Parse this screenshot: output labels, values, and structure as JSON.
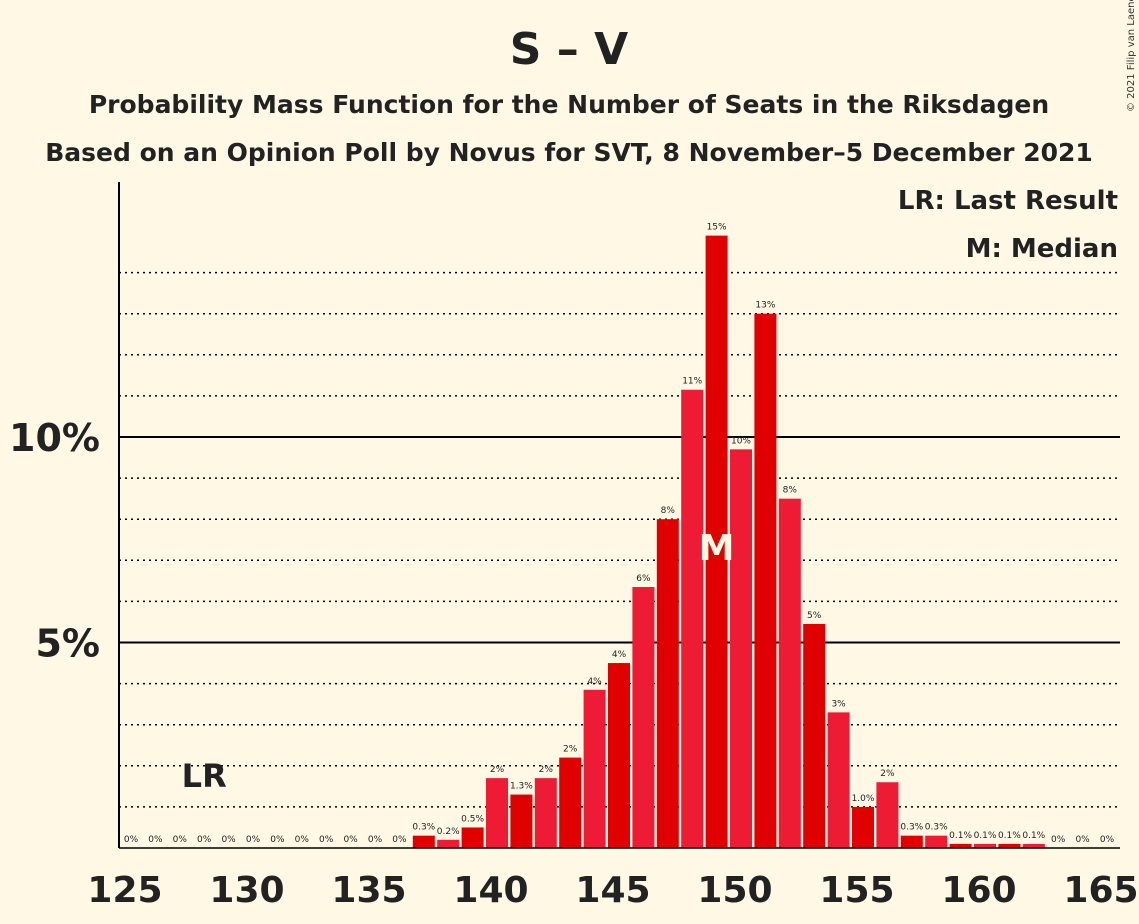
{
  "title": "S – V",
  "subtitle1": "Probability Mass Function for the Number of Seats in the Riksdagen",
  "subtitle2": "Based on an Opinion Poll by Novus for SVT, 8 November–5 December 2021",
  "copyright": "© 2021 Filip van Laenen",
  "legend": {
    "lr": "LR: Last Result",
    "m": "M: Median"
  },
  "markers": {
    "lr_label": "LR",
    "lr_seat": 128,
    "median_label": "M",
    "median_seat": 149
  },
  "colors": {
    "bg": "#FFF8E5",
    "bar_a": "#E10000",
    "bar_b": "#ED1B34",
    "axis": "#000000"
  },
  "chart_data": {
    "type": "bar",
    "xlabel": "",
    "ylabel": "",
    "x": [
      125,
      126,
      127,
      128,
      129,
      130,
      131,
      132,
      133,
      134,
      135,
      136,
      137,
      138,
      139,
      140,
      141,
      142,
      143,
      144,
      145,
      146,
      147,
      148,
      149,
      150,
      151,
      152,
      153,
      154,
      155,
      156,
      157,
      158,
      159,
      160,
      161,
      162,
      163,
      164,
      165
    ],
    "values": [
      0,
      0,
      0,
      0,
      0,
      0,
      0,
      0,
      0,
      0,
      0,
      0,
      0.3,
      0.2,
      0.5,
      1.7,
      1.3,
      1.7,
      2.2,
      3.85,
      4.5,
      6.35,
      8.0,
      11.15,
      14.9,
      9.7,
      13.0,
      8.5,
      5.45,
      3.3,
      1.0,
      1.6,
      0.3,
      0.3,
      0.1,
      0.1,
      0.1,
      0.1,
      0,
      0,
      0
    ],
    "labels": [
      "0%",
      "0%",
      "0%",
      "0%",
      "0%",
      "0%",
      "0%",
      "0%",
      "0%",
      "0%",
      "0%",
      "0%",
      "0.3%",
      "0.2%",
      "0.5%",
      "2%",
      "1.3%",
      "2%",
      "2%",
      "4%",
      "4%",
      "6%",
      "8%",
      "11%",
      "15%",
      "10%",
      "13%",
      "8%",
      "5%",
      "3%",
      "1.0%",
      "2%",
      "0.3%",
      "0.3%",
      "0.1%",
      "0.1%",
      "0.1%",
      "0.1%",
      "0%",
      "0%",
      "0%"
    ],
    "x_ticks": [
      "125",
      "130",
      "135",
      "140",
      "145",
      "150",
      "155",
      "160",
      "165"
    ],
    "y_ticks": [
      {
        "value": 5,
        "label": "5%"
      },
      {
        "value": 10,
        "label": "10%"
      }
    ],
    "ylim": [
      0,
      16
    ]
  }
}
